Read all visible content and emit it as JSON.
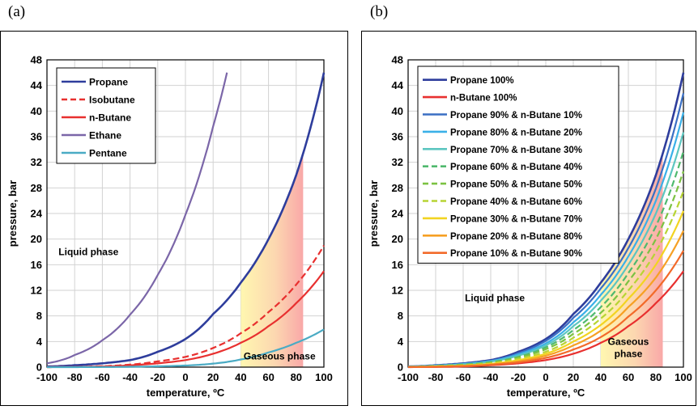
{
  "panels": {
    "a": {
      "tag": "(a)"
    },
    "b": {
      "tag": "(b)"
    }
  },
  "chart_data": [
    {
      "type": "line",
      "panel": "a",
      "title": "",
      "xlabel": "temperature, ºC",
      "ylabel": "pressure, bar",
      "xlim": [
        -100,
        100
      ],
      "ylim": [
        0,
        48
      ],
      "xticks": [
        -100,
        -80,
        -60,
        -40,
        -20,
        0,
        20,
        40,
        60,
        80,
        100
      ],
      "yticks": [
        0,
        4,
        8,
        12,
        16,
        20,
        24,
        28,
        32,
        36,
        40,
        44,
        48
      ],
      "grid": true,
      "legend_position": "top-left",
      "annotations": [
        {
          "text": "Liquid phase",
          "x": -70,
          "y": 17.5
        },
        {
          "text": "Gaseous phase",
          "x": 68,
          "y": 1.2
        }
      ],
      "shaded_region": {
        "x_from": 40,
        "x_to": 85,
        "upper_series": "Propane"
      },
      "series": [
        {
          "name": "Propane",
          "color": "#2e3d9c",
          "dash": "solid",
          "x": [
            -100,
            -80,
            -60,
            -40,
            -20,
            0,
            20,
            40,
            60,
            80,
            100
          ],
          "y": [
            0.1,
            0.3,
            0.6,
            1.1,
            2.4,
            4.4,
            8.3,
            13.2,
            20.0,
            30.0,
            46.0
          ]
        },
        {
          "name": "Isobutane",
          "color": "#e8302f",
          "dash": "dashed",
          "x": [
            -100,
            -80,
            -60,
            -40,
            -20,
            0,
            20,
            40,
            60,
            80,
            100
          ],
          "y": [
            0.0,
            0.05,
            0.15,
            0.4,
            0.9,
            1.6,
            3.0,
            5.3,
            8.6,
            12.9,
            19.0
          ]
        },
        {
          "name": "n-Butane",
          "color": "#e8302f",
          "dash": "solid",
          "x": [
            -100,
            -80,
            -60,
            -40,
            -20,
            0,
            20,
            40,
            60,
            80,
            100
          ],
          "y": [
            0.0,
            0.03,
            0.1,
            0.3,
            0.6,
            1.1,
            2.1,
            3.8,
            6.4,
            10.0,
            15.0
          ]
        },
        {
          "name": "Ethane",
          "color": "#7b66a8",
          "dash": "solid",
          "x": [
            -100,
            -80,
            -60,
            -40,
            -20,
            0,
            20,
            30
          ],
          "y": [
            0.6,
            1.9,
            4.2,
            8.2,
            14.4,
            23.8,
            37.6,
            46.0
          ]
        },
        {
          "name": "Pentane",
          "color": "#4aabc4",
          "dash": "solid",
          "x": [
            -100,
            -80,
            -60,
            -40,
            -20,
            0,
            20,
            40,
            60,
            80,
            100
          ],
          "y": [
            0.0,
            0.0,
            0.02,
            0.06,
            0.13,
            0.25,
            0.55,
            1.2,
            2.3,
            3.8,
            5.9
          ]
        }
      ]
    },
    {
      "type": "line",
      "panel": "b",
      "title": "",
      "xlabel": "temperature, ºC",
      "ylabel": "pressure, bar",
      "xlim": [
        -100,
        100
      ],
      "ylim": [
        0,
        48
      ],
      "xticks": [
        -100,
        -80,
        -60,
        -40,
        -20,
        0,
        20,
        40,
        60,
        80,
        100
      ],
      "yticks": [
        0,
        4,
        8,
        12,
        16,
        20,
        24,
        28,
        32,
        36,
        40,
        44,
        48
      ],
      "grid": true,
      "legend_position": "top-left",
      "annotations": [
        {
          "text": "Liquid phase",
          "x": -37,
          "y": 10.3
        },
        {
          "text": "Gaseous",
          "x": 60,
          "y": 3.5
        },
        {
          "text": "phase",
          "x": 60,
          "y": 1.6
        }
      ],
      "shaded_region": {
        "x_from": 40,
        "x_to": 85,
        "upper_series": "Propane 100%"
      },
      "series": [
        {
          "name": "Propane 100%",
          "color": "#2e3d9c",
          "dash": "solid",
          "x": [
            -100,
            -80,
            -60,
            -40,
            -20,
            0,
            20,
            40,
            60,
            80,
            100
          ],
          "y": [
            0.1,
            0.3,
            0.6,
            1.1,
            2.4,
            4.4,
            8.3,
            13.2,
            20.0,
            30.0,
            46.0
          ]
        },
        {
          "name": "n-Butane 100%",
          "color": "#e8302f",
          "dash": "solid",
          "x": [
            -100,
            -80,
            -60,
            -40,
            -20,
            0,
            20,
            40,
            60,
            80,
            100
          ],
          "y": [
            0.0,
            0.03,
            0.1,
            0.3,
            0.6,
            1.1,
            2.1,
            3.8,
            6.4,
            10.0,
            15.0
          ]
        },
        {
          "name": "Propane 90% & n-Butane 10%",
          "color": "#3a6fc4",
          "dash": "solid",
          "x": [
            -100,
            -80,
            -60,
            -40,
            -20,
            0,
            20,
            40,
            60,
            80,
            100
          ],
          "y": [
            0.09,
            0.27,
            0.55,
            1.0,
            2.2,
            4.1,
            7.7,
            12.3,
            18.6,
            27.9,
            42.8
          ]
        },
        {
          "name": "Propane 80% & n-Butane 20%",
          "color": "#3ab0e8",
          "dash": "solid",
          "x": [
            -100,
            -80,
            -60,
            -40,
            -20,
            0,
            20,
            40,
            60,
            80,
            100
          ],
          "y": [
            0.08,
            0.25,
            0.5,
            0.95,
            2.0,
            3.7,
            7.0,
            11.3,
            17.3,
            26.0,
            39.8
          ]
        },
        {
          "name": "Propane 70% & n-Butane 30%",
          "color": "#5cc6c0",
          "dash": "solid",
          "x": [
            -100,
            -80,
            -60,
            -40,
            -20,
            0,
            20,
            40,
            60,
            80,
            100
          ],
          "y": [
            0.07,
            0.22,
            0.45,
            0.85,
            1.8,
            3.4,
            6.4,
            10.4,
            16.0,
            24.0,
            36.7
          ]
        },
        {
          "name": "Propane 60% & n-Butane 40%",
          "color": "#4fb96e",
          "dash": "dashed",
          "x": [
            -100,
            -80,
            -60,
            -40,
            -20,
            0,
            20,
            40,
            60,
            80,
            100
          ],
          "y": [
            0.06,
            0.2,
            0.4,
            0.78,
            1.6,
            3.1,
            5.8,
            9.4,
            14.7,
            22.0,
            33.7
          ]
        },
        {
          "name": "Propane 50% & n-Butane 50%",
          "color": "#7cc242",
          "dash": "dashed",
          "x": [
            -100,
            -80,
            -60,
            -40,
            -20,
            0,
            20,
            40,
            60,
            80,
            100
          ],
          "y": [
            0.05,
            0.17,
            0.35,
            0.7,
            1.5,
            2.8,
            5.2,
            8.5,
            13.4,
            20.0,
            30.6
          ]
        },
        {
          "name": "Propane 40% & n-Butane 60%",
          "color": "#b7d433",
          "dash": "dashed",
          "x": [
            -100,
            -80,
            -60,
            -40,
            -20,
            0,
            20,
            40,
            60,
            80,
            100
          ],
          "y": [
            0.04,
            0.14,
            0.3,
            0.6,
            1.3,
            2.4,
            4.6,
            7.6,
            12.0,
            18.0,
            27.5
          ]
        },
        {
          "name": "Propane 30% & n-Butane 70%",
          "color": "#f2d421",
          "dash": "solid",
          "x": [
            -100,
            -80,
            -60,
            -40,
            -20,
            0,
            20,
            40,
            60,
            80,
            100
          ],
          "y": [
            0.03,
            0.11,
            0.25,
            0.52,
            1.1,
            2.1,
            4.0,
            6.6,
            10.7,
            16.0,
            24.4
          ]
        },
        {
          "name": "Propane 20% & n-Butane 80%",
          "color": "#f6a024",
          "dash": "solid",
          "x": [
            -100,
            -80,
            -60,
            -40,
            -20,
            0,
            20,
            40,
            60,
            80,
            100
          ],
          "y": [
            0.02,
            0.08,
            0.2,
            0.44,
            0.9,
            1.8,
            3.4,
            5.7,
            9.4,
            14.0,
            21.3
          ]
        },
        {
          "name": "Propane 10% & n-Butane 90%",
          "color": "#f26a2a",
          "dash": "solid",
          "x": [
            -100,
            -80,
            -60,
            -40,
            -20,
            0,
            20,
            40,
            60,
            80,
            100
          ],
          "y": [
            0.01,
            0.05,
            0.15,
            0.37,
            0.75,
            1.45,
            2.75,
            4.7,
            7.9,
            12.0,
            18.2
          ]
        }
      ]
    }
  ]
}
